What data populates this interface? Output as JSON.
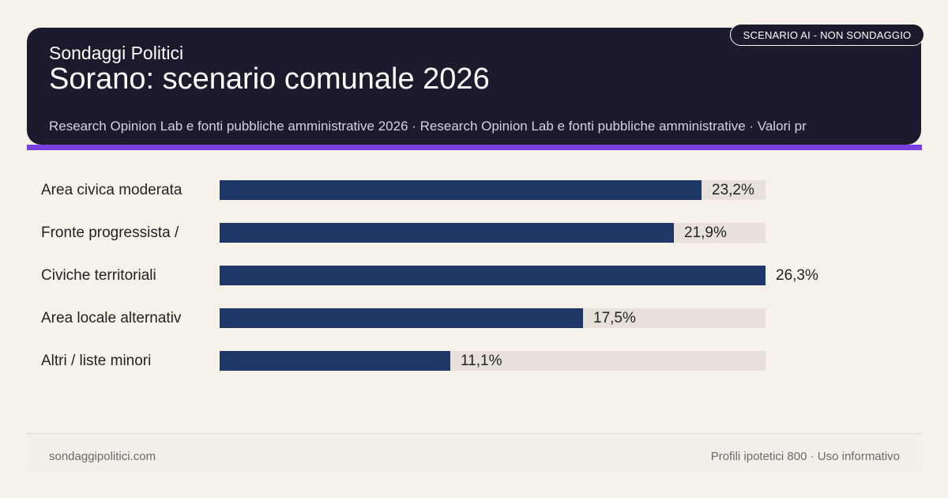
{
  "header": {
    "brand": "Sondaggi Politici",
    "title": "Sorano: scenario comunale 2026",
    "subtitle": "Research Opinion Lab e fonti pubbliche amministrative 2026 · Research Opinion Lab e fonti pubbliche amministrative · Valori pr",
    "badge": "SCENARIO AI - NON SONDAGGIO"
  },
  "colors": {
    "header_bg": "#1c1b2e",
    "accent": "#7a3fe0",
    "bar": "#1e3766",
    "track": "#e8e1da",
    "page_bg": "#f6f2ea"
  },
  "chart_data": {
    "type": "bar",
    "orientation": "horizontal",
    "categories": [
      "Area civica moderata",
      "Fronte progressista /",
      "Civiche territoriali",
      "Area locale alternativ",
      "Altri / liste minori"
    ],
    "values": [
      23.2,
      21.9,
      26.3,
      17.5,
      11.1
    ],
    "value_labels": [
      "23,2%",
      "21,9%",
      "26,3%",
      "17,5%",
      "11,1%"
    ],
    "xlim": [
      0,
      26.3
    ],
    "grid": false
  },
  "footer": {
    "left": "sondaggipolitici.com",
    "right": "Profili ipotetici 800 · Uso informativo"
  }
}
